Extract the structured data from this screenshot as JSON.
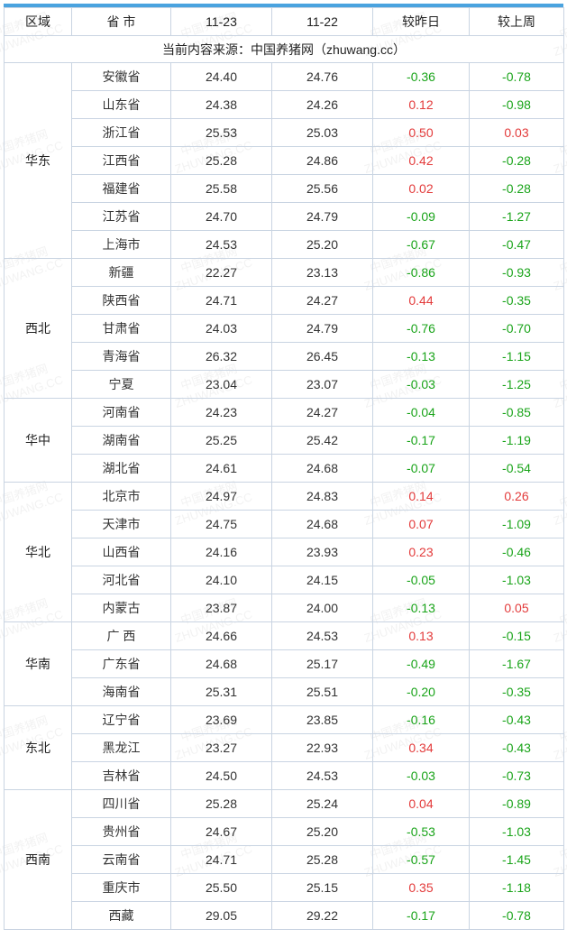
{
  "header": {
    "region": "区域",
    "province": "省 市",
    "date1": "11-23",
    "date2": "11-22",
    "vsYesterday": "较昨日",
    "vsLastWeek": "较上周"
  },
  "sourceLine": "当前内容来源：中国养猪网（zhuwang.cc）",
  "watermark": {
    "line1": "中国养猪网",
    "line2": "ZHUWANG.CC"
  },
  "colors": {
    "up": "#e33b3b",
    "down": "#1aa41a",
    "border": "#c9d4e2",
    "text": "#333333"
  },
  "regions": [
    {
      "name": "华东",
      "rows": [
        {
          "prov": "安徽省",
          "d1": "24.40",
          "d2": "24.76",
          "dy": "-0.36",
          "dw": "-0.78"
        },
        {
          "prov": "山东省",
          "d1": "24.38",
          "d2": "24.26",
          "dy": "0.12",
          "dw": "-0.98"
        },
        {
          "prov": "浙江省",
          "d1": "25.53",
          "d2": "25.03",
          "dy": "0.50",
          "dw": "0.03"
        },
        {
          "prov": "江西省",
          "d1": "25.28",
          "d2": "24.86",
          "dy": "0.42",
          "dw": "-0.28"
        },
        {
          "prov": "福建省",
          "d1": "25.58",
          "d2": "25.56",
          "dy": "0.02",
          "dw": "-0.28"
        },
        {
          "prov": "江苏省",
          "d1": "24.70",
          "d2": "24.79",
          "dy": "-0.09",
          "dw": "-1.27"
        },
        {
          "prov": "上海市",
          "d1": "24.53",
          "d2": "25.20",
          "dy": "-0.67",
          "dw": "-0.47"
        }
      ]
    },
    {
      "name": "西北",
      "rows": [
        {
          "prov": "新疆",
          "d1": "22.27",
          "d2": "23.13",
          "dy": "-0.86",
          "dw": "-0.93"
        },
        {
          "prov": "陕西省",
          "d1": "24.71",
          "d2": "24.27",
          "dy": "0.44",
          "dw": "-0.35"
        },
        {
          "prov": "甘肃省",
          "d1": "24.03",
          "d2": "24.79",
          "dy": "-0.76",
          "dw": "-0.70"
        },
        {
          "prov": "青海省",
          "d1": "26.32",
          "d2": "26.45",
          "dy": "-0.13",
          "dw": "-1.15"
        },
        {
          "prov": "宁夏",
          "d1": "23.04",
          "d2": "23.07",
          "dy": "-0.03",
          "dw": "-1.25"
        }
      ]
    },
    {
      "name": "华中",
      "rows": [
        {
          "prov": "河南省",
          "d1": "24.23",
          "d2": "24.27",
          "dy": "-0.04",
          "dw": "-0.85"
        },
        {
          "prov": "湖南省",
          "d1": "25.25",
          "d2": "25.42",
          "dy": "-0.17",
          "dw": "-1.19"
        },
        {
          "prov": "湖北省",
          "d1": "24.61",
          "d2": "24.68",
          "dy": "-0.07",
          "dw": "-0.54"
        }
      ]
    },
    {
      "name": "华北",
      "rows": [
        {
          "prov": "北京市",
          "d1": "24.97",
          "d2": "24.83",
          "dy": "0.14",
          "dw": "0.26"
        },
        {
          "prov": "天津市",
          "d1": "24.75",
          "d2": "24.68",
          "dy": "0.07",
          "dw": "-1.09"
        },
        {
          "prov": "山西省",
          "d1": "24.16",
          "d2": "23.93",
          "dy": "0.23",
          "dw": "-0.46"
        },
        {
          "prov": "河北省",
          "d1": "24.10",
          "d2": "24.15",
          "dy": "-0.05",
          "dw": "-1.03"
        },
        {
          "prov": "内蒙古",
          "d1": "23.87",
          "d2": "24.00",
          "dy": "-0.13",
          "dw": "0.05"
        }
      ]
    },
    {
      "name": "华南",
      "rows": [
        {
          "prov": "广 西",
          "d1": "24.66",
          "d2": "24.53",
          "dy": "0.13",
          "dw": "-0.15"
        },
        {
          "prov": "广东省",
          "d1": "24.68",
          "d2": "25.17",
          "dy": "-0.49",
          "dw": "-1.67"
        },
        {
          "prov": "海南省",
          "d1": "25.31",
          "d2": "25.51",
          "dy": "-0.20",
          "dw": "-0.35"
        }
      ]
    },
    {
      "name": "东北",
      "rows": [
        {
          "prov": "辽宁省",
          "d1": "23.69",
          "d2": "23.85",
          "dy": "-0.16",
          "dw": "-0.43"
        },
        {
          "prov": "黑龙江",
          "d1": "23.27",
          "d2": "22.93",
          "dy": "0.34",
          "dw": "-0.43"
        },
        {
          "prov": "吉林省",
          "d1": "24.50",
          "d2": "24.53",
          "dy": "-0.03",
          "dw": "-0.73"
        }
      ]
    },
    {
      "name": "西南",
      "rows": [
        {
          "prov": "四川省",
          "d1": "25.28",
          "d2": "25.24",
          "dy": "0.04",
          "dw": "-0.89"
        },
        {
          "prov": "贵州省",
          "d1": "24.67",
          "d2": "25.20",
          "dy": "-0.53",
          "dw": "-1.03"
        },
        {
          "prov": "云南省",
          "d1": "24.71",
          "d2": "25.28",
          "dy": "-0.57",
          "dw": "-1.45"
        },
        {
          "prov": "重庆市",
          "d1": "25.50",
          "d2": "25.15",
          "dy": "0.35",
          "dw": "-1.18"
        },
        {
          "prov": "西藏",
          "d1": "29.05",
          "d2": "29.22",
          "dy": "-0.17",
          "dw": "-0.78"
        }
      ]
    }
  ]
}
